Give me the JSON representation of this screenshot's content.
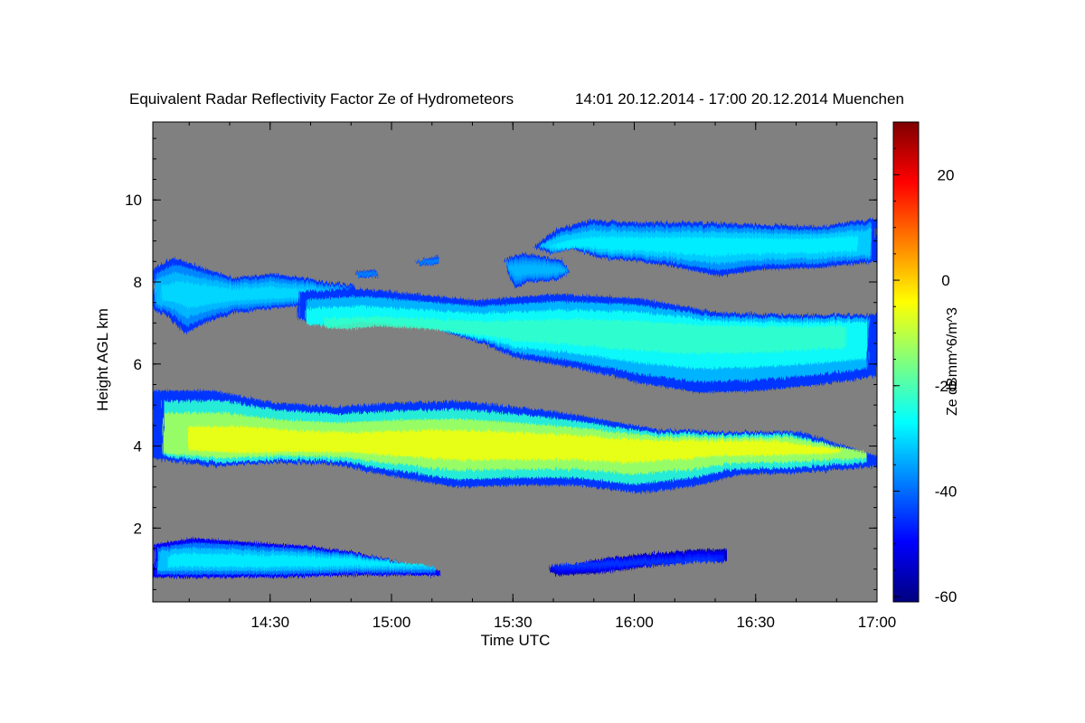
{
  "chart_data": {
    "type": "heatmap",
    "title": "Equivalent Radar Reflectivity Factor Ze of Hydrometeors",
    "subtitle": "14:01 20.12.2014 - 17:00 20.12.2014 Muenchen",
    "xlabel": "Time UTC",
    "ylabel": "Height AGL km",
    "colorbar_label": "Ze dBmm^6/m^3",
    "xlim": [
      "14:01",
      "17:00"
    ],
    "xlim_minutes": [
      0,
      179
    ],
    "ylim": [
      0.2,
      11.9
    ],
    "x_ticks": [
      {
        "label": "14:30",
        "minutes": 29
      },
      {
        "label": "15:00",
        "minutes": 59
      },
      {
        "label": "15:30",
        "minutes": 89
      },
      {
        "label": "16:00",
        "minutes": 119
      },
      {
        "label": "16:30",
        "minutes": 149
      },
      {
        "label": "17:00",
        "minutes": 179
      }
    ],
    "y_ticks": [
      {
        "label": "2",
        "value": 2
      },
      {
        "label": "4",
        "value": 4
      },
      {
        "label": "6",
        "value": 6
      },
      {
        "label": "8",
        "value": 8
      },
      {
        "label": "10",
        "value": 10
      }
    ],
    "colorbar_range": [
      -61,
      30
    ],
    "colorbar_ticks": [
      {
        "label": "20",
        "value": 20
      },
      {
        "label": "0",
        "value": 0
      },
      {
        "label": "-20",
        "value": -20
      },
      {
        "label": "-40",
        "value": -40
      },
      {
        "label": "-60",
        "value": -60
      }
    ],
    "background_color": "#808080",
    "colormap": [
      "#00007f",
      "#0000ff",
      "#007fff",
      "#00ffff",
      "#7fff7f",
      "#ffff00",
      "#ff7f00",
      "#ff0000",
      "#7f0000"
    ],
    "layers": [
      {
        "name": "high-cirrus-upper",
        "ze_edge": -45,
        "ze_core": -28,
        "points": [
          [
            94,
            8.85
          ],
          [
            100,
            9.3
          ],
          [
            108,
            9.5
          ],
          [
            120,
            9.45
          ],
          [
            135,
            9.45
          ],
          [
            150,
            9.4
          ],
          [
            165,
            9.35
          ],
          [
            179,
            9.55
          ],
          [
            179,
            8.5
          ],
          [
            165,
            8.35
          ],
          [
            150,
            8.3
          ],
          [
            140,
            8.15
          ],
          [
            130,
            8.35
          ],
          [
            120,
            8.5
          ],
          [
            110,
            8.6
          ],
          [
            104,
            8.8
          ],
          [
            98,
            8.7
          ]
        ]
      },
      {
        "name": "high-cirrus-patch",
        "ze_edge": -45,
        "ze_core": -33,
        "points": [
          [
            87,
            8.55
          ],
          [
            92,
            8.7
          ],
          [
            96,
            8.6
          ],
          [
            101,
            8.55
          ],
          [
            103,
            8.25
          ],
          [
            100,
            8.05
          ],
          [
            93,
            8.0
          ],
          [
            90,
            7.85
          ],
          [
            88,
            8.1
          ]
        ]
      },
      {
        "name": "high-cloud-left",
        "ze_edge": -45,
        "ze_core": -30,
        "points": [
          [
            0,
            8.3
          ],
          [
            5,
            8.6
          ],
          [
            12,
            8.35
          ],
          [
            20,
            8.1
          ],
          [
            30,
            8.2
          ],
          [
            40,
            8.05
          ],
          [
            50,
            7.9
          ],
          [
            50,
            7.6
          ],
          [
            38,
            7.45
          ],
          [
            28,
            7.35
          ],
          [
            20,
            7.25
          ],
          [
            14,
            7.05
          ],
          [
            8,
            6.75
          ],
          [
            3,
            7.2
          ],
          [
            0,
            7.3
          ]
        ]
      },
      {
        "name": "small-patch-1",
        "ze_edge": -45,
        "ze_core": -38,
        "points": [
          [
            50,
            8.25
          ],
          [
            55,
            8.3
          ],
          [
            56,
            8.15
          ],
          [
            51,
            8.1
          ]
        ]
      },
      {
        "name": "small-patch-2",
        "ze_edge": -45,
        "ze_core": -38,
        "points": [
          [
            65,
            8.5
          ],
          [
            70,
            8.65
          ],
          [
            71,
            8.45
          ],
          [
            66,
            8.4
          ]
        ]
      },
      {
        "name": "middle-sloping-cloud",
        "ze_edge": -45,
        "ze_core": -22,
        "points": [
          [
            36,
            7.75
          ],
          [
            50,
            7.85
          ],
          [
            65,
            7.7
          ],
          [
            80,
            7.55
          ],
          [
            100,
            7.7
          ],
          [
            120,
            7.6
          ],
          [
            140,
            7.25
          ],
          [
            160,
            7.2
          ],
          [
            179,
            7.2
          ],
          [
            179,
            5.7
          ],
          [
            165,
            5.5
          ],
          [
            150,
            5.35
          ],
          [
            135,
            5.3
          ],
          [
            120,
            5.55
          ],
          [
            105,
            5.9
          ],
          [
            90,
            6.15
          ],
          [
            80,
            6.55
          ],
          [
            65,
            7.0
          ],
          [
            50,
            7.2
          ],
          [
            42,
            7.0
          ],
          [
            36,
            7.1
          ]
        ]
      },
      {
        "name": "middle-layer-4km",
        "ze_edge": -45,
        "ze_core": -5,
        "points": [
          [
            0,
            5.35
          ],
          [
            15,
            5.35
          ],
          [
            30,
            5.05
          ],
          [
            45,
            4.95
          ],
          [
            60,
            5.05
          ],
          [
            75,
            5.1
          ],
          [
            90,
            4.95
          ],
          [
            105,
            4.75
          ],
          [
            125,
            4.4
          ],
          [
            140,
            4.35
          ],
          [
            160,
            4.35
          ],
          [
            179,
            3.75
          ],
          [
            179,
            3.5
          ],
          [
            160,
            3.35
          ],
          [
            145,
            3.3
          ],
          [
            135,
            3.05
          ],
          [
            120,
            2.85
          ],
          [
            105,
            3.05
          ],
          [
            90,
            3.05
          ],
          [
            75,
            3.0
          ],
          [
            60,
            3.25
          ],
          [
            45,
            3.55
          ],
          [
            30,
            3.6
          ],
          [
            15,
            3.5
          ],
          [
            0,
            3.7
          ]
        ]
      },
      {
        "name": "low-layer",
        "ze_edge": -50,
        "ze_core": -28,
        "points": [
          [
            0,
            1.6
          ],
          [
            10,
            1.75
          ],
          [
            25,
            1.65
          ],
          [
            40,
            1.55
          ],
          [
            50,
            1.4
          ],
          [
            60,
            1.2
          ],
          [
            71,
            0.95
          ],
          [
            71,
            0.85
          ],
          [
            50,
            0.85
          ],
          [
            30,
            0.8
          ],
          [
            10,
            0.8
          ],
          [
            0,
            0.8
          ]
        ]
      },
      {
        "name": "low-scattered-echoes",
        "ze_edge": -55,
        "ze_core": -45,
        "points": [
          [
            98,
            1.05
          ],
          [
            105,
            1.15
          ],
          [
            115,
            1.3
          ],
          [
            125,
            1.4
          ],
          [
            142,
            1.5
          ],
          [
            142,
            1.2
          ],
          [
            125,
            1.1
          ],
          [
            110,
            0.9
          ],
          [
            100,
            0.85
          ],
          [
            98,
            0.95
          ]
        ]
      }
    ]
  }
}
